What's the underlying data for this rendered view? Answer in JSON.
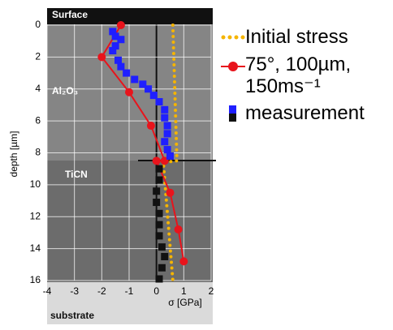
{
  "chart_data": {
    "type": "line",
    "xlabel": "σ [GPa]",
    "ylabel": "depth [µm]",
    "annotations": [
      "Surface",
      "Al₂O₃",
      "TiCN",
      "substrate"
    ],
    "xlim": [
      -4,
      2
    ],
    "xticks": [
      -4,
      -3,
      -2,
      -1,
      0,
      1,
      2
    ],
    "ylim": [
      0,
      16
    ],
    "yticks": [
      0,
      2,
      4,
      6,
      8,
      10,
      12,
      14,
      16
    ],
    "y_inverted": true,
    "grid": true,
    "series": [
      {
        "name": "Initial stress",
        "color": "#f5b400",
        "style": "dotted",
        "x": [
          0.6,
          0.75,
          0.25,
          0.6
        ],
        "values": [
          0,
          8.5,
          8.6,
          16
        ]
      },
      {
        "name": "75°, 100µm, 150ms⁻¹",
        "color": "#e8141c",
        "style": "line-marker",
        "x": [
          -1.3,
          -2,
          -1,
          -0.2,
          0.3,
          0,
          0.5,
          0.8,
          1
        ],
        "values": [
          0,
          2,
          4.2,
          6.3,
          8.5,
          8.5,
          10.5,
          12.8,
          14.8
        ]
      },
      {
        "name": "measurement",
        "color": "#1f1fff",
        "style": "square",
        "x": [
          -1.6,
          -1.5,
          -1.3,
          -1.5,
          -1.6,
          -1.4,
          -1.3,
          -1.1,
          -0.8,
          -0.5,
          -0.3,
          -0.1,
          0.1,
          0.3,
          0.3,
          0.4,
          0.4,
          0.3,
          0.4,
          0.5,
          0.1,
          0.1,
          0,
          0,
          0.1,
          0.1,
          0.1,
          0.2,
          0.3,
          0.2,
          0.1
        ],
        "values": [
          0.4,
          0.7,
          0.9,
          1.3,
          1.6,
          2.2,
          2.6,
          3,
          3.4,
          3.7,
          4,
          4.4,
          4.8,
          5.3,
          5.8,
          6.3,
          6.8,
          7.3,
          7.8,
          8.2,
          9,
          9.7,
          10.4,
          11.1,
          11.8,
          12.5,
          13.2,
          13.9,
          14.5,
          15.2,
          15.9
        ],
        "point_colors": [
          "#1f1fff",
          "#1f1fff",
          "#1f1fff",
          "#1f1fff",
          "#1f1fff",
          "#1f1fff",
          "#1f1fff",
          "#1f1fff",
          "#1f1fff",
          "#1f1fff",
          "#1f1fff",
          "#1f1fff",
          "#1f1fff",
          "#1f1fff",
          "#1f1fff",
          "#1f1fff",
          "#1f1fff",
          "#1f1fff",
          "#1f1fff",
          "#1f1fff",
          "#111111",
          "#111111",
          "#111111",
          "#111111",
          "#111111",
          "#111111",
          "#111111",
          "#111111",
          "#111111",
          "#111111",
          "#111111"
        ]
      }
    ]
  }
}
